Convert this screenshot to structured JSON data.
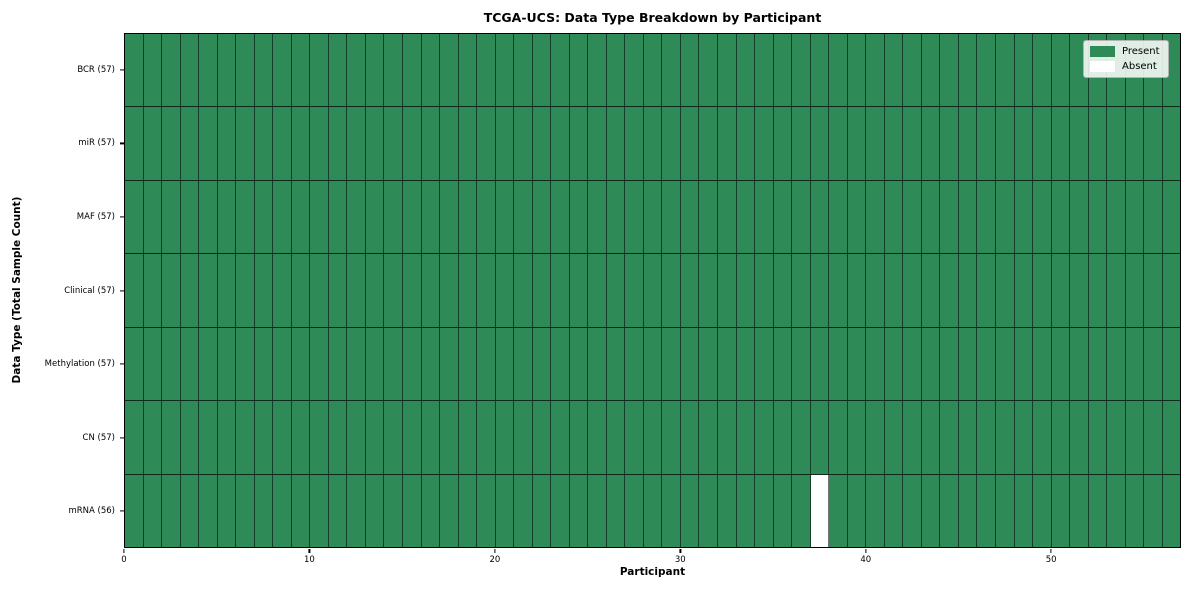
{
  "chart_data": {
    "type": "heatmap",
    "title": "TCGA-UCS: Data Type Breakdown by Participant",
    "xlabel": "Participant",
    "ylabel": "Data Type (Total Sample Count)",
    "x_ticks": [
      0,
      10,
      20,
      30,
      40,
      50
    ],
    "x_range": [
      0,
      57
    ],
    "n_participants": 57,
    "rows": [
      {
        "label": "BCR (57)",
        "present_count": 57,
        "absent_participants": []
      },
      {
        "label": "miR (57)",
        "present_count": 57,
        "absent_participants": []
      },
      {
        "label": "MAF (57)",
        "present_count": 57,
        "absent_participants": []
      },
      {
        "label": "Clinical (57)",
        "present_count": 57,
        "absent_participants": []
      },
      {
        "label": "Methylation (57)",
        "present_count": 57,
        "absent_participants": []
      },
      {
        "label": "CN (57)",
        "present_count": 57,
        "absent_participants": []
      },
      {
        "label": "mRNA (56)",
        "present_count": 56,
        "absent_participants": [
          37
        ]
      }
    ],
    "legend": [
      {
        "label": "Present",
        "color": "#2E8B57"
      },
      {
        "label": "Absent",
        "color": "#FFFFFF"
      }
    ],
    "legend_position": "upper right",
    "colors": {
      "present": "#2E8B57",
      "absent": "#FFFFFF",
      "grid_line": "rgba(0,0,0,0.55)",
      "plot_border": "#000000",
      "legend_border": "#b3b3b3"
    }
  }
}
